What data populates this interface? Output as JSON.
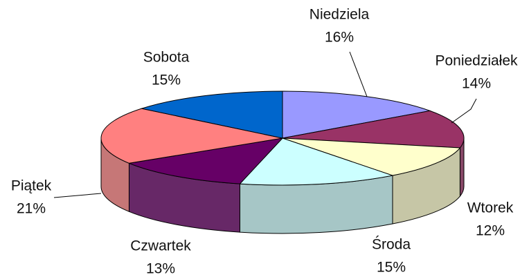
{
  "chart_data": {
    "type": "pie3d",
    "categories": [
      "Niedziela",
      "Poniedziałek",
      "Wtorek",
      "Środa",
      "Czwartek",
      "Piątek",
      "Sobota"
    ],
    "values": [
      16,
      14,
      12,
      15,
      13,
      21,
      15
    ],
    "value_labels": [
      "16%",
      "14%",
      "12%",
      "15%",
      "13%",
      "21%",
      "15%"
    ],
    "colors": [
      "#9999ff",
      "#993366",
      "#ffffcc",
      "#ccffff",
      "#660066",
      "#ff8080",
      "#0066cc"
    ]
  }
}
